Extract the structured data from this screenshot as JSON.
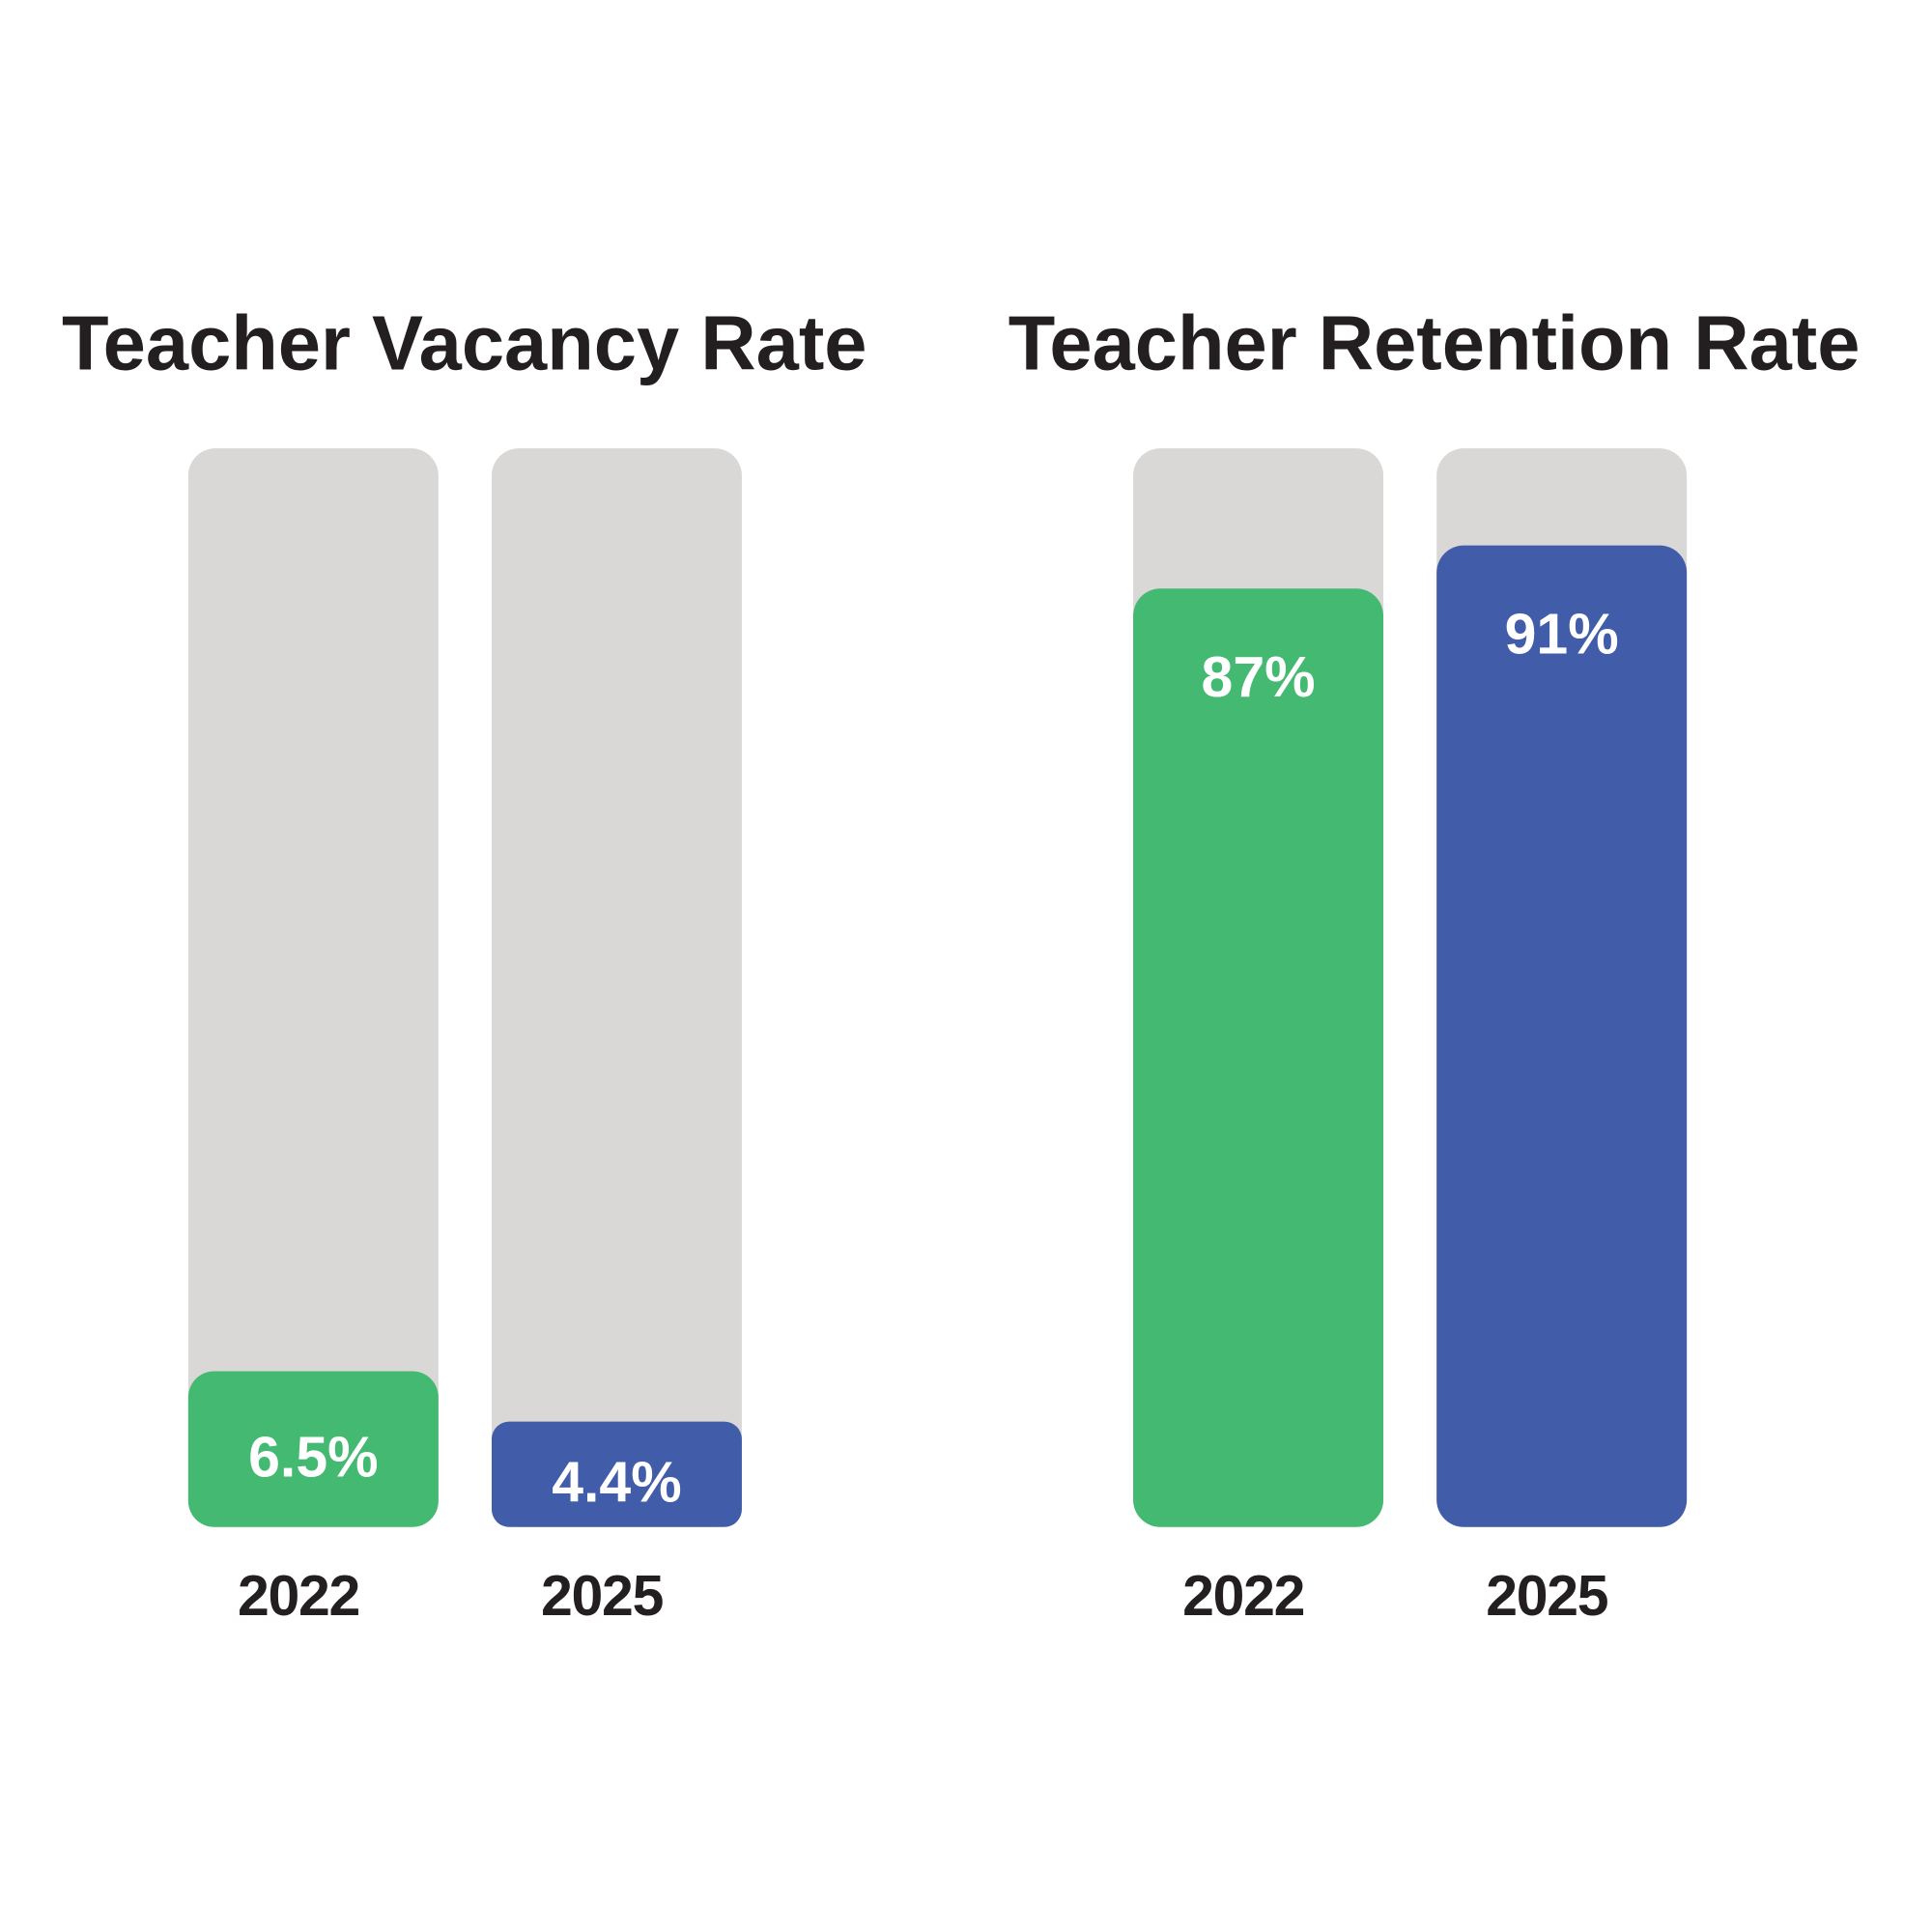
{
  "chart_data": [
    {
      "type": "bar",
      "title": "Teacher Vacancy Rate",
      "categories": [
        "2022",
        "2025"
      ],
      "values": [
        6.5,
        4.4
      ],
      "value_labels": [
        "6.5%",
        "4.4%"
      ],
      "colors": [
        "#43b971",
        "#415ca8"
      ],
      "track_color": "#d9d8d7",
      "ylim": [
        0,
        45
      ]
    },
    {
      "type": "bar",
      "title": "Teacher Retention Rate",
      "categories": [
        "2022",
        "2025"
      ],
      "values": [
        87,
        91
      ],
      "value_labels": [
        "87%",
        "91%"
      ],
      "colors": [
        "#43b971",
        "#415ca8"
      ],
      "track_color": "#d9d8d7",
      "ylim": [
        0,
        100
      ]
    }
  ]
}
